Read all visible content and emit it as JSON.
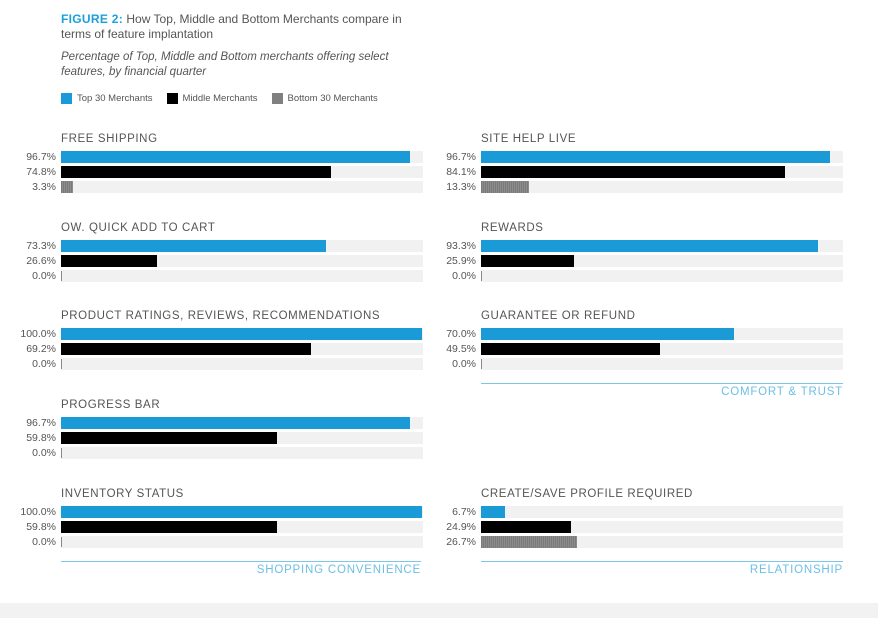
{
  "header": {
    "figure_label": "FIGURE 2:",
    "title": "How Top, Middle and Bottom Merchants compare in terms of feature implantation",
    "subtitle": "Percentage of Top, Middle and Bottom merchants offering select features, by financial quarter"
  },
  "legend": [
    {
      "label": "Top 30 Merchants",
      "color": "#1a9ad6"
    },
    {
      "label": "Middle Merchants",
      "color": "#000000"
    },
    {
      "label": "Bottom 30 Merchants",
      "color": "#808080"
    }
  ],
  "groups": {
    "left": "SHOPPING CONVENIENCE",
    "right_top": "COMFORT & TRUST",
    "right_bottom": "RELATIONSHIP"
  },
  "chart_data": {
    "type": "bar",
    "orientation": "horizontal",
    "xlim": [
      0,
      100
    ],
    "series_names": [
      "Top 30 Merchants",
      "Middle Merchants",
      "Bottom 30 Merchants"
    ],
    "panels": [
      {
        "title": "FREE SHIPPING",
        "values": [
          96.7,
          74.8,
          3.3
        ],
        "labels": [
          "96.7%",
          "74.8%",
          "3.3%"
        ]
      },
      {
        "title": "OW. QUICK ADD TO CART",
        "values": [
          73.3,
          26.6,
          0.0
        ],
        "labels": [
          "73.3%",
          "26.6%",
          "0.0%"
        ]
      },
      {
        "title": "PRODUCT RATINGS, REVIEWS, RECOMMENDATIONS",
        "values": [
          100.0,
          69.2,
          0.0
        ],
        "labels": [
          "100.0%",
          "69.2%",
          "0.0%"
        ]
      },
      {
        "title": "PROGRESS BAR",
        "values": [
          96.7,
          59.8,
          0.0
        ],
        "labels": [
          "96.7%",
          "59.8%",
          "0.0%"
        ]
      },
      {
        "title": "INVENTORY STATUS",
        "values": [
          100.0,
          59.8,
          0.0
        ],
        "labels": [
          "100.0%",
          "59.8%",
          "0.0%"
        ]
      },
      {
        "title": "SITE HELP LIVE",
        "values": [
          96.7,
          84.1,
          13.3
        ],
        "labels": [
          "96.7%",
          "84.1%",
          "13.3%"
        ]
      },
      {
        "title": "REWARDS",
        "values": [
          93.3,
          25.9,
          0.0
        ],
        "labels": [
          "93.3%",
          "25.9%",
          "0.0%"
        ]
      },
      {
        "title": "GUARANTEE OR REFUND",
        "values": [
          70.0,
          49.5,
          0.0
        ],
        "labels": [
          "70.0%",
          "49.5%",
          "0.0%"
        ]
      },
      {
        "title": "CREATE/SAVE PROFILE REQUIRED",
        "values": [
          6.7,
          24.9,
          26.7
        ],
        "labels": [
          "6.7%",
          "24.9%",
          "26.7%"
        ]
      }
    ]
  }
}
